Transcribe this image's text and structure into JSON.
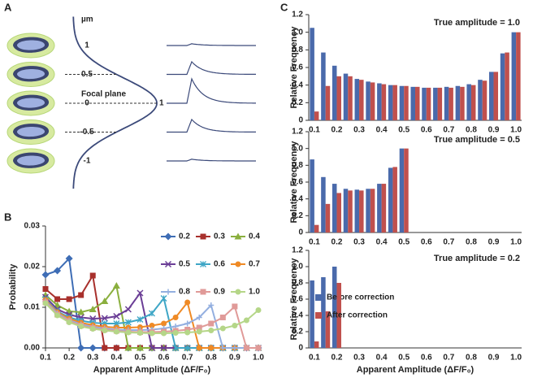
{
  "panel_labels": [
    "A",
    "B",
    "C"
  ],
  "panel_a": {
    "unit": "µm",
    "ticks": [
      1,
      0.5,
      0,
      -0.5,
      -1
    ],
    "focal_label": "Focal plane",
    "peak": 1
  },
  "chart_data": [
    {
      "type": "line",
      "ylabel": "Probability",
      "xlabel": "Apparent Amplitude (ΔF/F₀)",
      "x": [
        0.1,
        0.15,
        0.2,
        0.25,
        0.3,
        0.35,
        0.4,
        0.45,
        0.5,
        0.55,
        0.6,
        0.65,
        0.7,
        0.75,
        0.8,
        0.85,
        0.9,
        0.95,
        1.0
      ],
      "xlim": [
        0.1,
        1.0
      ],
      "xticks": [
        0.1,
        0.2,
        0.3,
        0.4,
        0.5,
        0.6,
        0.7,
        0.8,
        0.9,
        {
          "value": 1.0,
          "label": "1.0"
        }
      ],
      "ylim": [
        0,
        0.03
      ],
      "yticks": [
        {
          "value": 0,
          "label": "0.00"
        },
        0.01,
        0.02,
        0.03
      ],
      "series": [
        {
          "name": "0.2",
          "color": "#3e6db5",
          "marker": "diamond",
          "values": [
            0.018,
            0.019,
            0.022,
            0,
            0,
            0,
            0,
            0,
            0,
            0,
            0,
            0,
            0,
            0,
            0,
            0,
            0,
            0,
            0
          ]
        },
        {
          "name": "0.3",
          "color": "#a8302c",
          "marker": "square",
          "values": [
            0.0145,
            0.012,
            0.012,
            0.013,
            0.0178,
            0,
            0,
            0,
            0,
            0,
            0,
            0,
            0,
            0,
            0,
            0,
            0,
            0,
            0
          ]
        },
        {
          "name": "0.4",
          "color": "#8aaf3e",
          "marker": "triangle",
          "values": [
            0.013,
            0.0105,
            0.009,
            0.0088,
            0.0095,
            0.0115,
            0.0153,
            0,
            0,
            0,
            0,
            0,
            0,
            0,
            0,
            0,
            0,
            0,
            0
          ]
        },
        {
          "name": "0.5",
          "color": "#6b3e96",
          "marker": "x",
          "values": [
            0.0125,
            0.0095,
            0.0082,
            0.0075,
            0.0072,
            0.0073,
            0.0078,
            0.0095,
            0.0135,
            0,
            0,
            0,
            0,
            0,
            0,
            0,
            0,
            0,
            0
          ]
        },
        {
          "name": "0.6",
          "color": "#3ea6c6",
          "marker": "star",
          "values": [
            0.012,
            0.009,
            0.0075,
            0.0067,
            0.0062,
            0.006,
            0.006,
            0.0063,
            0.007,
            0.0085,
            0.0122,
            0,
            0,
            0,
            0,
            0,
            0,
            0,
            0
          ]
        },
        {
          "name": "0.7",
          "color": "#ef8a25",
          "marker": "circle",
          "values": [
            0.0118,
            0.0088,
            0.0072,
            0.0062,
            0.0056,
            0.0052,
            0.005,
            0.005,
            0.0051,
            0.0055,
            0.006,
            0.0075,
            0.0112,
            0,
            0,
            0,
            0,
            0,
            0
          ]
        },
        {
          "name": "0.8",
          "color": "#93afe0",
          "marker": "plus",
          "values": [
            0.0115,
            0.0085,
            0.0068,
            0.0058,
            0.0052,
            0.0048,
            0.0045,
            0.0044,
            0.0044,
            0.0045,
            0.0048,
            0.0053,
            0.006,
            0.0075,
            0.0105,
            0,
            0,
            0,
            0
          ]
        },
        {
          "name": "0.9",
          "color": "#e09a98",
          "marker": "square",
          "values": [
            0.0112,
            0.0082,
            0.0066,
            0.0055,
            0.0049,
            0.0045,
            0.0042,
            0.004,
            0.0039,
            0.0039,
            0.004,
            0.0042,
            0.0045,
            0.005,
            0.006,
            0.0075,
            0.0102,
            0,
            0
          ]
        },
        {
          "name": "1.0",
          "color": "#b5d688",
          "marker": "circle",
          "values": [
            0.011,
            0.008,
            0.0063,
            0.0053,
            0.0047,
            0.0043,
            0.004,
            0.0038,
            0.0037,
            0.0036,
            0.0036,
            0.0037,
            0.0038,
            0.004,
            0.0043,
            0.0048,
            0.0055,
            0.0068,
            0.0093
          ]
        }
      ]
    },
    {
      "type": "bar",
      "ylabel": "Relative Frequency",
      "annotation": "True amplitude = 1.0",
      "categories": [
        "0.1",
        null,
        "0.2",
        null,
        "0.3",
        null,
        "0.4",
        null,
        "0.5",
        null,
        "0.6",
        null,
        "0.7",
        null,
        "0.8",
        null,
        "0.9",
        null,
        "1.0"
      ],
      "ylim": [
        0,
        1.2
      ],
      "yticks": [
        0,
        0.2,
        0.4,
        0.6,
        0.8,
        {
          "value": 1.0,
          "label": "1.0"
        },
        1.2
      ],
      "series": [
        {
          "color": "#4a6aab",
          "values": [
            1.05,
            0.77,
            0.62,
            0.53,
            0.47,
            0.44,
            0.42,
            0.4,
            0.39,
            0.38,
            0.37,
            0.37,
            0.38,
            0.39,
            0.41,
            0.46,
            0.55,
            0.76,
            1.0
          ]
        },
        {
          "color": "#c0504d",
          "values": [
            0.1,
            0.39,
            0.5,
            0.5,
            0.46,
            0.43,
            0.41,
            0.4,
            0.39,
            0.38,
            0.37,
            0.37,
            0.37,
            0.38,
            0.4,
            0.45,
            0.55,
            0.77,
            1.0
          ]
        }
      ]
    },
    {
      "type": "bar",
      "ylabel": "Relative Frequency",
      "annotation": "True amplitude = 0.5",
      "categories": [
        "0.1",
        null,
        "0.2",
        null,
        "0.3",
        null,
        "0.4",
        null,
        "0.5",
        null,
        "0.6",
        null,
        "0.7",
        null,
        "0.8",
        null,
        "0.9",
        null,
        "1.0"
      ],
      "ylim": [
        0,
        1.2
      ],
      "yticks": [
        0,
        0.2,
        0.4,
        0.6,
        0.8,
        {
          "value": 1.0,
          "label": "1.0"
        },
        1.2
      ],
      "series": [
        {
          "color": "#4a6aab",
          "values": [
            0.87,
            0.66,
            0.58,
            0.52,
            0.51,
            0.52,
            0.58,
            0.77,
            1.0,
            0,
            0,
            0,
            0,
            0,
            0,
            0,
            0,
            0,
            0
          ]
        },
        {
          "color": "#c0504d",
          "values": [
            0.09,
            0.34,
            0.47,
            0.5,
            0.5,
            0.52,
            0.58,
            0.78,
            1.0,
            0,
            0,
            0,
            0,
            0,
            0,
            0,
            0,
            0,
            0
          ]
        }
      ]
    },
    {
      "type": "bar",
      "ylabel": "Relative Frequency",
      "xlabel": "Apparent Amplitude (ΔF/F₀)",
      "annotation": "True amplitude = 0.2",
      "legend": "left",
      "categories": [
        "0.1",
        null,
        "0.2",
        null,
        "0.3",
        null,
        "0.4",
        null,
        "0.5",
        null,
        "0.6",
        null,
        "0.7",
        null,
        "0.8",
        null,
        "0.9",
        null,
        "1.0"
      ],
      "ylim": [
        0,
        1.2
      ],
      "yticks": [
        0,
        0.2,
        0.4,
        0.6,
        0.8,
        {
          "value": 1.0,
          "label": "1.0"
        },
        1.2
      ],
      "series": [
        {
          "name": "Before correction",
          "color": "#4a6aab",
          "values": [
            0.83,
            0.87,
            1.0,
            0,
            0,
            0,
            0,
            0,
            0,
            0,
            0,
            0,
            0,
            0,
            0,
            0,
            0,
            0,
            0
          ]
        },
        {
          "name": "After correction",
          "color": "#c0504d",
          "values": [
            0.08,
            0.45,
            0.8,
            0,
            0,
            0,
            0,
            0,
            0,
            0,
            0,
            0,
            0,
            0,
            0,
            0,
            0,
            0,
            0
          ]
        }
      ]
    }
  ]
}
